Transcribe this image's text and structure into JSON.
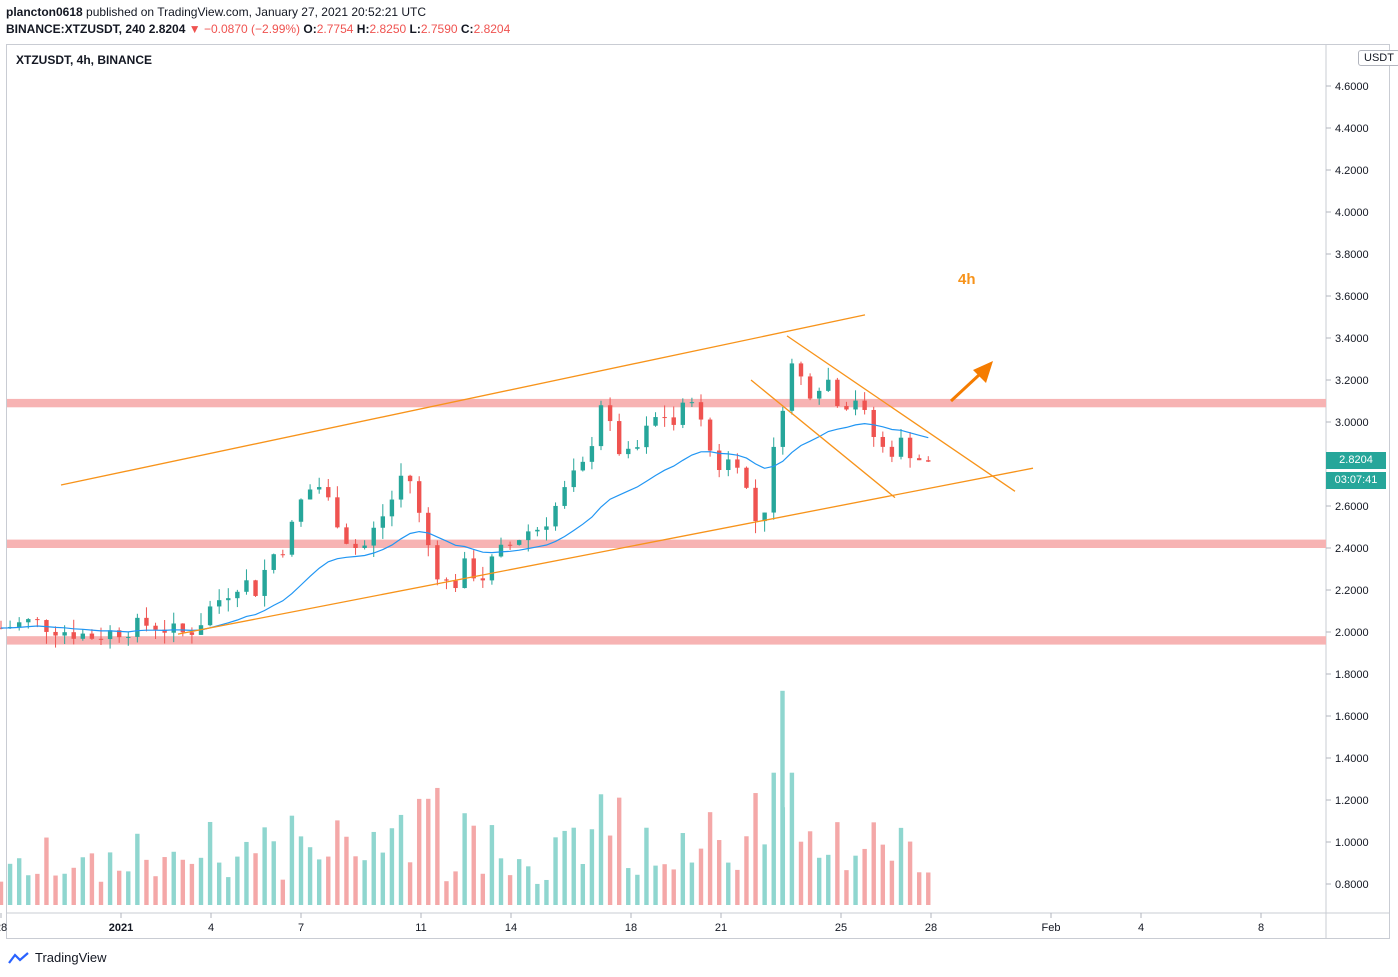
{
  "header": {
    "author": "plancton0618",
    "published_text": "published on TradingView.com, January 27, 2021 20:52:21 UTC",
    "symbol": "BINANCE:XTZUSDT, 240",
    "last": "2.8204",
    "change_arrow": "▼",
    "change": "−0.0870 (−2.99%)",
    "o_label": "O:",
    "o_value": "2.7754",
    "h_label": "H:",
    "h_value": "2.8250",
    "l_label": "L:",
    "l_value": "2.7590",
    "c_label": "C:",
    "c_value": "2.8204"
  },
  "legend": "XTZUSDT, 4h, BINANCE",
  "currency": "USDT",
  "price_tag": "2.8204",
  "countdown_tag": "03:07:41",
  "annotation": "4h",
  "brand": "TradingView",
  "colors": {
    "up": "#26a69a",
    "down": "#ef5350",
    "up_volume": "#8fd6cf",
    "down_volume": "#f4a8a8",
    "ma": "#2196f3",
    "trendline": "#f7931a",
    "zone": "#f7b3b3",
    "arrow": "#f57c00"
  },
  "chart_data": {
    "type": "candlestick",
    "y_axis": {
      "min": 0.7,
      "max": 4.7,
      "ticks": [
        "0.8000",
        "1.0000",
        "1.2000",
        "1.4000",
        "1.6000",
        "1.8000",
        "2.0000",
        "2.2000",
        "2.4000",
        "2.6000",
        "2.8000",
        "3.0000",
        "3.2000",
        "3.4000",
        "3.6000",
        "3.8000",
        "4.0000",
        "4.2000",
        "4.4000",
        "4.6000"
      ]
    },
    "x_axis": {
      "ticks": [
        {
          "label": "28",
          "day": -4
        },
        {
          "label": "2021",
          "day": 0
        },
        {
          "label": "4",
          "day": 3
        },
        {
          "label": "7",
          "day": 6
        },
        {
          "label": "11",
          "day": 10
        },
        {
          "label": "14",
          "day": 13
        },
        {
          "label": "18",
          "day": 17
        },
        {
          "label": "21",
          "day": 20
        },
        {
          "label": "25",
          "day": 24
        },
        {
          "label": "28",
          "day": 27
        },
        {
          "label": "Feb",
          "day": 31
        },
        {
          "label": "4",
          "day": 34
        },
        {
          "label": "8",
          "day": 38
        }
      ]
    },
    "close_points": [
      [
        -4,
        2.02
      ],
      [
        -3,
        2.05
      ],
      [
        -2,
        2.01
      ],
      [
        -1,
        1.98
      ],
      [
        0,
        2.01
      ],
      [
        1,
        2.04
      ],
      [
        2,
        1.99
      ],
      [
        2.5,
        2.02
      ],
      [
        3,
        2.12
      ],
      [
        4,
        2.25
      ],
      [
        4.5,
        2.2
      ],
      [
        5,
        2.36
      ],
      [
        5.5,
        2.42
      ],
      [
        6,
        2.62
      ],
      [
        6.5,
        2.72
      ],
      [
        7,
        2.6
      ],
      [
        7.5,
        2.45
      ],
      [
        8,
        2.38
      ],
      [
        8.5,
        2.5
      ],
      [
        9,
        2.62
      ],
      [
        9.5,
        2.8
      ],
      [
        10,
        2.52
      ],
      [
        10.5,
        2.3
      ],
      [
        11,
        2.2
      ],
      [
        11.5,
        2.32
      ],
      [
        12,
        2.25
      ],
      [
        12.5,
        2.36
      ],
      [
        13,
        2.42
      ],
      [
        13.5,
        2.48
      ],
      [
        14,
        2.5
      ],
      [
        14.5,
        2.6
      ],
      [
        15,
        2.72
      ],
      [
        15.5,
        2.8
      ],
      [
        16,
        3.1
      ],
      [
        16.5,
        2.88
      ],
      [
        17,
        2.82
      ],
      [
        17.5,
        2.95
      ],
      [
        18,
        3.05
      ],
      [
        18.5,
        2.98
      ],
      [
        19,
        3.15
      ],
      [
        19.5,
        2.9
      ],
      [
        20,
        2.78
      ],
      [
        20.5,
        2.85
      ],
      [
        21,
        2.6
      ],
      [
        21.3,
        2.47
      ],
      [
        21.6,
        2.72
      ],
      [
        22,
        3.05
      ],
      [
        22.3,
        3.28
      ],
      [
        22.6,
        3.22
      ],
      [
        23,
        3.15
      ],
      [
        23.5,
        3.22
      ],
      [
        24,
        3.08
      ],
      [
        24.5,
        3.12
      ],
      [
        25,
        2.95
      ],
      [
        25.5,
        2.85
      ],
      [
        26,
        2.9
      ],
      [
        26.5,
        2.84
      ],
      [
        27,
        2.78
      ],
      [
        27.2,
        2.82
      ]
    ],
    "ma_label": "",
    "horizontal_zones": [
      {
        "y_from": 3.07,
        "y_to": 3.11
      },
      {
        "y_from": 2.4,
        "y_to": 2.44
      },
      {
        "y_from": 1.94,
        "y_to": 1.98
      }
    ],
    "trendlines": [
      {
        "from": [
          -2.0,
          2.7
        ],
        "to": [
          24.8,
          3.51
        ]
      },
      {
        "from": [
          1.9,
          1.99
        ],
        "to": [
          30.4,
          2.78
        ]
      },
      {
        "from": [
          22.2,
          3.41
        ],
        "to": [
          29.8,
          2.67
        ]
      },
      {
        "from": [
          21.0,
          3.2
        ],
        "to": [
          25.8,
          2.64
        ]
      }
    ],
    "volume": {
      "baseline": 0.7,
      "max_value_as_axis": 1.72
    }
  }
}
